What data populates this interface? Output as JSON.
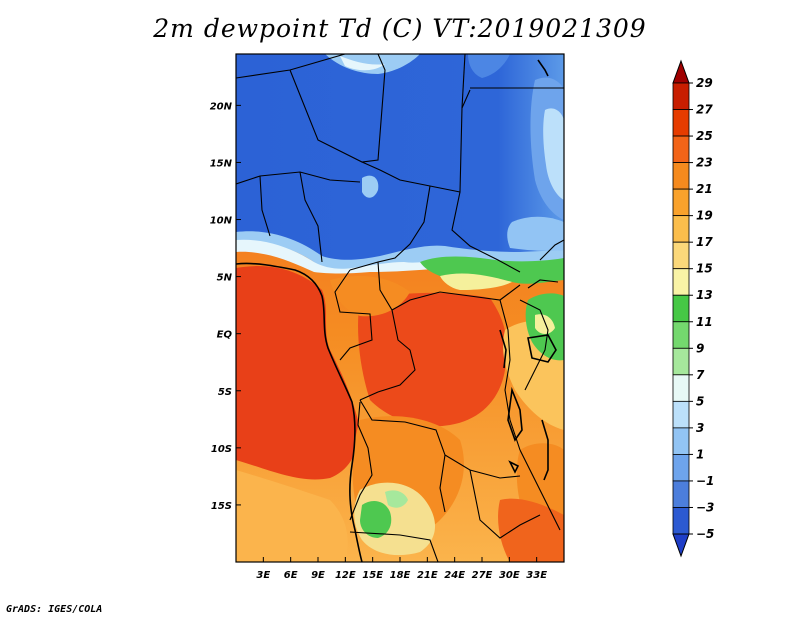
{
  "title": "2m dewpoint Td (C) VT:2019021309",
  "credit": "GrADS: IGES/COLA",
  "map": {
    "lon_range": [
      0,
      36
    ],
    "lat_range": [
      -20,
      24.5
    ],
    "lon_ticks": [
      {
        "value": 3,
        "label": "3E"
      },
      {
        "value": 6,
        "label": "6E"
      },
      {
        "value": 9,
        "label": "9E"
      },
      {
        "value": 12,
        "label": "12E"
      },
      {
        "value": 15,
        "label": "15E"
      },
      {
        "value": 18,
        "label": "18E"
      },
      {
        "value": 21,
        "label": "21E"
      },
      {
        "value": 24,
        "label": "24E"
      },
      {
        "value": 27,
        "label": "27E"
      },
      {
        "value": 30,
        "label": "30E"
      },
      {
        "value": 33,
        "label": "33E"
      }
    ],
    "lat_ticks": [
      {
        "value": 20,
        "label": "20N"
      },
      {
        "value": 15,
        "label": "15N"
      },
      {
        "value": 10,
        "label": "10N"
      },
      {
        "value": 5,
        "label": "5N"
      },
      {
        "value": 0,
        "label": "EQ"
      },
      {
        "value": -5,
        "label": "5S"
      },
      {
        "value": -10,
        "label": "10S"
      },
      {
        "value": -15,
        "label": "15S"
      }
    ]
  },
  "colorbar": {
    "levels": [
      "29",
      "27",
      "25",
      "23",
      "21",
      "19",
      "17",
      "15",
      "13",
      "11",
      "9",
      "7",
      "5",
      "3",
      "1",
      "−1",
      "−3",
      "−5"
    ],
    "colors_top_to_bottom": [
      "#a00000",
      "#c81e00",
      "#e63c00",
      "#f26418",
      "#f58a1e",
      "#f9a22c",
      "#fbbe4c",
      "#fbd87a",
      "#f9f3a6",
      "#46c845",
      "#74d86e",
      "#a6e89c",
      "#e8f9f6",
      "#bce0fa",
      "#92c4f4",
      "#6ea4ec",
      "#4c7edc",
      "#2c5ad2",
      "#1e3ec8"
    ]
  },
  "field_colors": {
    "dry_blue": "#2c64d8",
    "mid_blue": "#3e78e0",
    "light_blue": "#9cccf4",
    "pale": "#e6f6fc",
    "green": "#4ec850",
    "yellow": "#f5f09c",
    "gold": "#fbc45c",
    "orange": "#f58c22",
    "dark_orange": "#f0641c",
    "red": "#e84018"
  }
}
